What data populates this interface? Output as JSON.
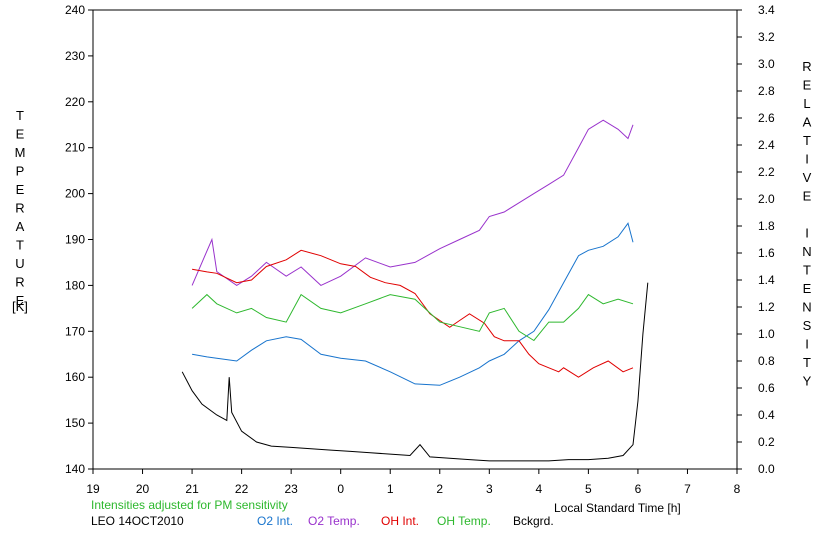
{
  "chart_data": {
    "type": "line",
    "left_axis": {
      "title": "TEMPERATURE",
      "unit": "[K]",
      "min": 140,
      "max": 240,
      "ticks": [
        "140",
        "150",
        "160",
        "170",
        "180",
        "190",
        "200",
        "210",
        "220",
        "230",
        "240"
      ]
    },
    "right_axis": {
      "title": "RELATIVE INTENSITY",
      "min": 0.0,
      "max": 3.4,
      "ticks": [
        "0.0",
        "0.2",
        "0.4",
        "0.6",
        "0.8",
        "1.0",
        "1.2",
        "1.4",
        "1.6",
        "1.8",
        "2.0",
        "2.2",
        "2.4",
        "2.6",
        "2.8",
        "3.0",
        "3.2",
        "3.4"
      ]
    },
    "x_axis": {
      "title": "Local Standard Time [h]",
      "min": 19,
      "max": 32,
      "ticks": [
        "19",
        "20",
        "21",
        "22",
        "23",
        "0",
        "1",
        "2",
        "3",
        "4",
        "5",
        "6",
        "7",
        "8"
      ]
    },
    "note": "Intensities adjusted for PM sensitivity",
    "station": "LEO 14OCT2010",
    "series": [
      {
        "name": "O2 Int.",
        "axis": "right",
        "color": "#1874cd",
        "x": [
          21.0,
          21.3,
          21.5,
          21.9,
          22.2,
          22.5,
          22.9,
          23.2,
          23.6,
          24.0,
          24.5,
          25.0,
          25.5,
          26.0,
          26.4,
          26.8,
          27.0,
          27.3,
          27.6,
          27.9,
          28.2,
          28.5,
          28.8,
          29.0,
          29.3,
          29.6,
          29.8,
          29.9
        ],
        "y": [
          0.85,
          0.83,
          0.82,
          0.8,
          0.88,
          0.95,
          0.98,
          0.96,
          0.85,
          0.82,
          0.8,
          0.72,
          0.63,
          0.62,
          0.68,
          0.75,
          0.8,
          0.85,
          0.95,
          1.02,
          1.18,
          1.38,
          1.58,
          1.62,
          1.65,
          1.72,
          1.82,
          1.68
        ]
      },
      {
        "name": "O2 Temp.",
        "axis": "left",
        "color": "#9932cc",
        "x": [
          21.0,
          21.2,
          21.4,
          21.5,
          21.9,
          22.2,
          22.5,
          22.9,
          23.2,
          23.6,
          24.0,
          24.5,
          25.0,
          25.5,
          26.0,
          26.4,
          26.8,
          27.0,
          27.3,
          27.6,
          27.9,
          28.2,
          28.5,
          28.8,
          29.0,
          29.3,
          29.6,
          29.8,
          29.9
        ],
        "y": [
          180,
          185,
          190,
          183,
          180,
          182,
          185,
          182,
          184,
          180,
          182,
          186,
          184,
          185,
          188,
          190,
          192,
          195,
          196,
          198,
          200,
          202,
          204,
          210,
          214,
          216,
          214,
          212,
          215
        ]
      },
      {
        "name": "OH Int.",
        "axis": "right",
        "color": "#e00000",
        "x": [
          21.0,
          21.3,
          21.5,
          21.9,
          22.2,
          22.5,
          22.9,
          23.2,
          23.6,
          24.0,
          24.3,
          24.6,
          24.9,
          25.2,
          25.5,
          25.8,
          26.0,
          26.2,
          26.4,
          26.6,
          26.9,
          27.1,
          27.3,
          27.6,
          27.8,
          28.0,
          28.2,
          28.4,
          28.5,
          28.8,
          29.1,
          29.4,
          29.7,
          29.9
        ],
        "y": [
          1.48,
          1.46,
          1.45,
          1.38,
          1.4,
          1.5,
          1.55,
          1.62,
          1.58,
          1.52,
          1.5,
          1.42,
          1.38,
          1.36,
          1.3,
          1.15,
          1.1,
          1.05,
          1.1,
          1.15,
          1.08,
          0.98,
          0.95,
          0.95,
          0.85,
          0.78,
          0.75,
          0.72,
          0.75,
          0.68,
          0.75,
          0.8,
          0.72,
          0.75
        ]
      },
      {
        "name": "OH Temp.",
        "axis": "left",
        "color": "#2eb82e",
        "x": [
          21.0,
          21.3,
          21.5,
          21.9,
          22.2,
          22.5,
          22.9,
          23.2,
          23.6,
          24.0,
          24.5,
          25.0,
          25.5,
          26.0,
          26.4,
          26.8,
          27.0,
          27.3,
          27.6,
          27.9,
          28.2,
          28.5,
          28.8,
          29.0,
          29.3,
          29.6,
          29.9
        ],
        "y": [
          175,
          178,
          176,
          174,
          175,
          173,
          172,
          178,
          175,
          174,
          176,
          178,
          177,
          172,
          171,
          170,
          174,
          175,
          170,
          168,
          172,
          172,
          175,
          178,
          176,
          177,
          176
        ]
      },
      {
        "name": "Bckgrd.",
        "axis": "right",
        "color": "#000000",
        "x": [
          20.8,
          21.0,
          21.2,
          21.5,
          21.7,
          21.75,
          21.8,
          22.0,
          22.3,
          22.6,
          23.0,
          23.4,
          23.8,
          24.2,
          24.6,
          25.0,
          25.4,
          25.6,
          25.8,
          26.2,
          26.6,
          27.0,
          27.4,
          27.8,
          28.2,
          28.6,
          29.0,
          29.4,
          29.7,
          29.9,
          30.0,
          30.1,
          30.2
        ],
        "y": [
          0.72,
          0.58,
          0.48,
          0.4,
          0.36,
          0.68,
          0.42,
          0.28,
          0.2,
          0.17,
          0.16,
          0.15,
          0.14,
          0.13,
          0.12,
          0.11,
          0.1,
          0.18,
          0.09,
          0.08,
          0.07,
          0.06,
          0.06,
          0.06,
          0.06,
          0.07,
          0.07,
          0.08,
          0.1,
          0.18,
          0.5,
          1.0,
          1.38
        ]
      }
    ]
  }
}
